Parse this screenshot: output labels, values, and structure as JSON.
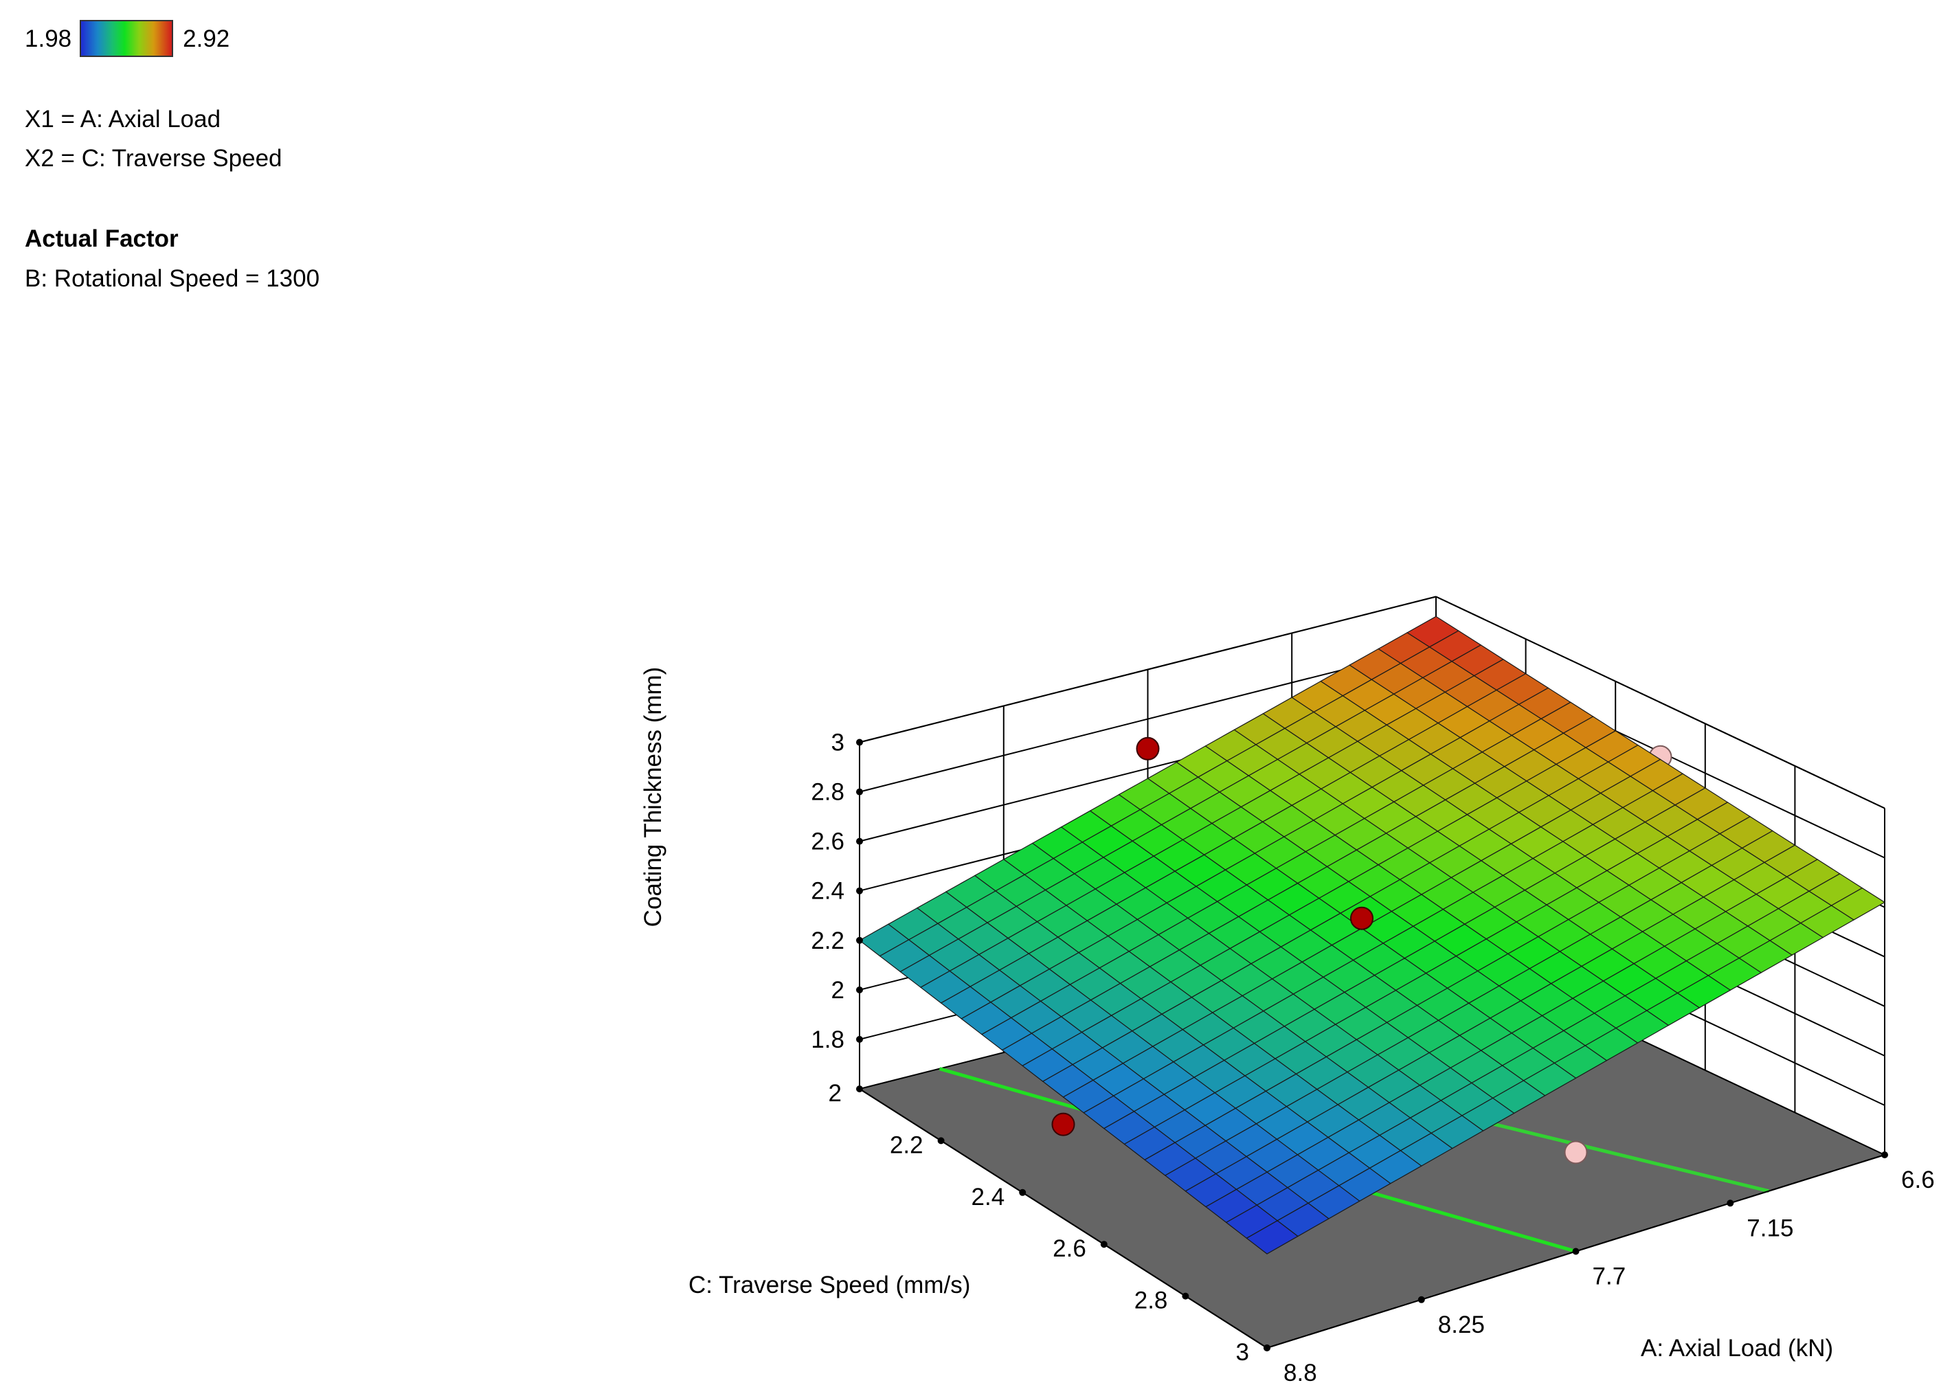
{
  "legend": {
    "color_min": "1.98",
    "color_max": "2.92",
    "x1_line": "X1 = A: Axial Load",
    "x2_line": "X2 = C: Traverse Speed",
    "actual_factor_heading": "Actual Factor",
    "actual_factor_value": "B: Rotational Speed  = 1300"
  },
  "chart_data": {
    "type": "surface3d",
    "zlabel": "Coating Thickness  (mm)",
    "xlabel": "A: Axial Load  (kN)",
    "ylabel": "C: Traverse Speed  (mm/s)",
    "x_ticks": [
      "6.6",
      "7.15",
      "7.7",
      "8.25",
      "8.8"
    ],
    "y_ticks": [
      "2",
      "2.2",
      "2.4",
      "2.6",
      "2.8",
      "3"
    ],
    "z_ticks": [
      "1.8",
      "2",
      "2.2",
      "2.4",
      "2.6",
      "2.8",
      "3"
    ],
    "x_range": [
      6.6,
      8.8
    ],
    "y_range": [
      2,
      3
    ],
    "z_range": [
      1.6,
      3
    ],
    "colorbar_range": [
      1.98,
      2.92
    ],
    "colormap": [
      "#1f2bd3",
      "#1a86c8",
      "#19c06e",
      "#10e020",
      "#8ad013",
      "#d49a10",
      "#d21c1c"
    ],
    "surface_corners": [
      {
        "x": 6.6,
        "y": 2,
        "z": 2.92
      },
      {
        "x": 6.6,
        "y": 3,
        "z": 2.62
      },
      {
        "x": 8.8,
        "y": 2,
        "z": 2.2
      },
      {
        "x": 8.8,
        "y": 3,
        "z": 1.98
      }
    ],
    "grid_divisions": 20,
    "contour_levels": [
      2.1,
      2.3,
      2.5,
      2.7,
      2.9
    ],
    "contour_colors": [
      "#2fd6dc",
      "#21e021",
      "#33d033",
      "#c8e020",
      "#f0c020"
    ],
    "floor_color": "#656565",
    "design_points": [
      {
        "x": 7.7,
        "y": 2,
        "z": 2.68,
        "above": true
      },
      {
        "x": 7.7,
        "y": 2.5,
        "z": 2.47,
        "above": true
      },
      {
        "x": 8.8,
        "y": 2.5,
        "z": 1.98,
        "above": true
      },
      {
        "x": 6.6,
        "y": 2.5,
        "z": 2.78,
        "above": false
      },
      {
        "x": 7.7,
        "y": 3,
        "z": 2.0,
        "above": false
      }
    ]
  }
}
